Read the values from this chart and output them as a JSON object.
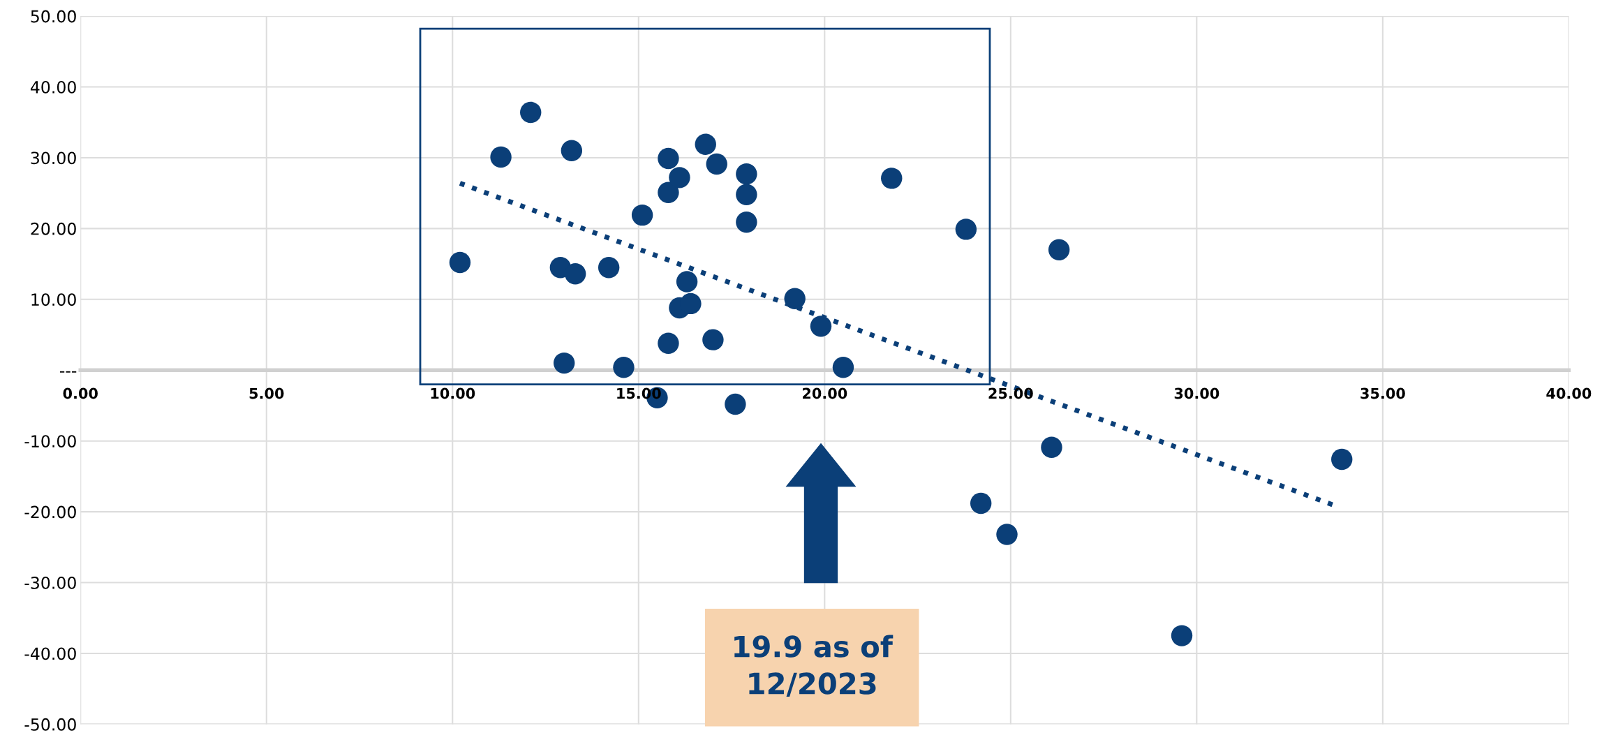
{
  "chart_data": {
    "type": "scatter",
    "xlim": [
      0,
      40
    ],
    "ylim": [
      -50,
      50
    ],
    "xticks": [
      {
        "value": 0,
        "label": "0.00"
      },
      {
        "value": 5,
        "label": "5.00"
      },
      {
        "value": 10,
        "label": "10.00"
      },
      {
        "value": 15,
        "label": "15.00"
      },
      {
        "value": 20,
        "label": "20.00"
      },
      {
        "value": 25,
        "label": "25.00"
      },
      {
        "value": 30,
        "label": "30.00"
      },
      {
        "value": 35,
        "label": "35.00"
      },
      {
        "value": 40,
        "label": "40.00"
      }
    ],
    "yticks": [
      {
        "value": -50,
        "label": "-50.00"
      },
      {
        "value": -40,
        "label": "-40.00"
      },
      {
        "value": -30,
        "label": "-30.00"
      },
      {
        "value": -20,
        "label": "-20.00"
      },
      {
        "value": -10,
        "label": "-10.00"
      },
      {
        "value": 0,
        "label": "---"
      },
      {
        "value": 10,
        "label": "10.00"
      },
      {
        "value": 20,
        "label": "20.00"
      },
      {
        "value": 30,
        "label": "30.00"
      },
      {
        "value": 40,
        "label": "40.00"
      },
      {
        "value": 50,
        "label": "50.00"
      }
    ],
    "grid": true,
    "legend": false,
    "marker": "circle",
    "series": [
      {
        "color": "#0b3f78",
        "x": [
          10.2,
          11.3,
          12.1,
          13.2,
          12.9,
          13.3,
          13.0,
          14.2,
          14.6,
          15.1,
          15.5,
          15.8,
          15.8,
          15.8,
          16.1,
          16.1,
          16.3,
          16.4,
          16.8,
          17.1,
          17.0,
          17.6,
          17.9,
          17.9,
          17.9,
          19.2,
          19.9,
          20.5,
          21.8,
          23.8,
          26.3,
          26.1,
          24.2,
          24.9,
          29.6,
          33.9
        ],
        "values": [
          15.2,
          30.1,
          36.4,
          31.0,
          14.5,
          13.6,
          1.0,
          14.5,
          0.4,
          21.9,
          -3.9,
          3.8,
          25.1,
          29.9,
          27.2,
          8.8,
          12.5,
          9.4,
          31.9,
          29.1,
          4.3,
          -4.8,
          27.7,
          24.8,
          20.9,
          10.1,
          6.2,
          0.4,
          27.1,
          19.9,
          17.0,
          -10.9,
          -18.8,
          -23.2,
          -37.5,
          -12.6
        ]
      },
      {
        "type": "line",
        "color": "#0b3f78",
        "line_style": "dotted",
        "marker": "none",
        "x": [
          10.2,
          33.7
        ],
        "values": [
          26.4,
          -19.1
        ]
      }
    ],
    "annotations": [
      "19.9 as of\n12/2023"
    ]
  }
}
